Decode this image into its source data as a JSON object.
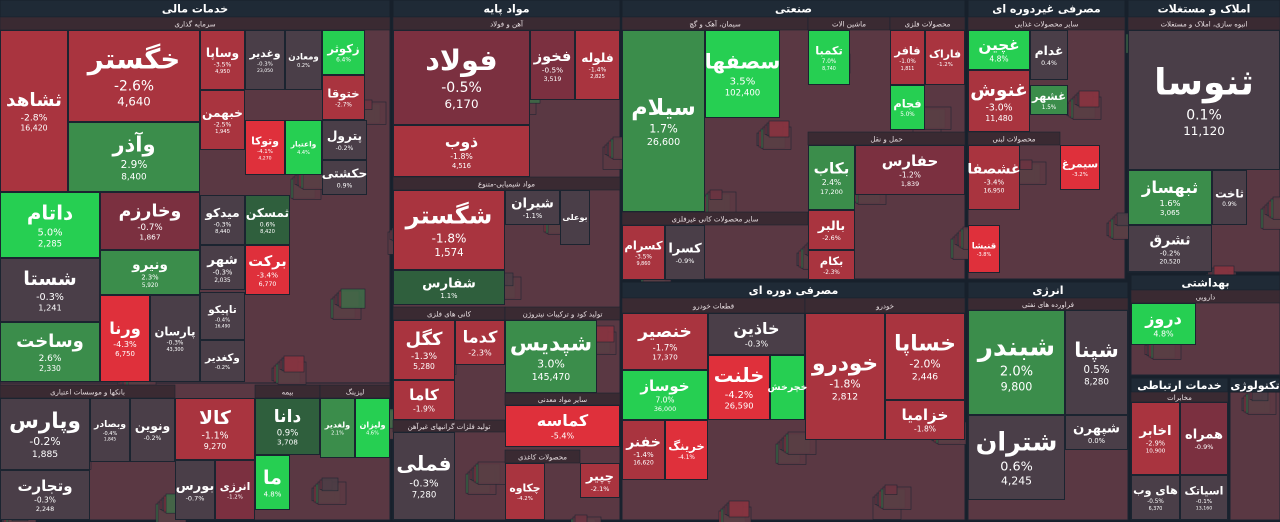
{
  "headers": [
    "خدمات مالی",
    "مواد پایه",
    "صنعتی",
    "مصرفی غیردوره ای",
    "املاک و مستغلات",
    "مصرفی دوره ای",
    "انرژی",
    "بهداشتی",
    "خدمات ارتباطی",
    "تکنولوژی"
  ],
  "subheaders": [
    "سرمایه گذاری",
    "بانکها و موسسات اعتباری",
    "بیمه",
    "لیزینگ",
    "آهن و فولاد",
    "مواد شیمیایی-متنوع",
    "کانی های فلزی",
    "تولید کود و ترکیبات نیتروژن",
    "سایر مواد معدنی",
    "تولید فلزات گرانبهای غیرآهن",
    "محصولات کاغذی",
    "سیمان، آهک و گچ",
    "ماشین الات",
    "محصولات فلزی",
    "حمل و نقل",
    "سایر محصولات کانی غیرفلزی",
    "سایر محصولات غذایی",
    "محصولات لبنی",
    "انبوه سازی، املاک و مستغلات",
    "قطعات خودرو",
    "خودرو",
    "فراورده های نفتی",
    "دارویی",
    "مخابرات"
  ],
  "tiles": [
    {
      "name": "ثشاهد",
      "change": "-2.8%",
      "value": "16,420"
    },
    {
      "name": "خگستر",
      "change": "-2.6%",
      "value": "4,640"
    },
    {
      "name": "وآذر",
      "change": "2.9%",
      "value": "8,400"
    },
    {
      "name": "داتام",
      "change": "5.0%",
      "value": "2,285"
    },
    {
      "name": "شستا",
      "change": "-0.3%",
      "value": "1,241"
    },
    {
      "name": "وساخت",
      "change": "2.6%",
      "value": "2,330"
    },
    {
      "name": "وخارزم",
      "change": "-0.7%",
      "value": "1,867"
    },
    {
      "name": "ونیرو",
      "change": "2.3%",
      "value": "5,920"
    },
    {
      "name": "ورنا",
      "change": "-4.3%",
      "value": "6,750"
    },
    {
      "name": "پارسان",
      "change": "-0.3%",
      "value": "43,300"
    },
    {
      "name": "وساپا",
      "change": "-3.5%",
      "value": "4,950"
    },
    {
      "name": "وغدیر",
      "change": "-0.3%",
      "value": "23,050"
    },
    {
      "name": "ومعادن",
      "change": "0.2%"
    },
    {
      "name": "زکوثر",
      "change": "6.4%"
    },
    {
      "name": "ختوقا",
      "change": "-2.7%"
    },
    {
      "name": "خبهمن",
      "change": "-2.5%",
      "value": "1,945"
    },
    {
      "name": "وتوکا",
      "change": "-4.1%",
      "value": "4,270"
    },
    {
      "name": "واعتبار",
      "change": "4.4%"
    },
    {
      "name": "پترول",
      "change": "-0.2%"
    },
    {
      "name": "حکشتی",
      "change": "0.9%"
    },
    {
      "name": "میدکو",
      "change": "-0.3%",
      "value": "8,440"
    },
    {
      "name": "ثمسکن",
      "change": "0.6%",
      "value": "8,420"
    },
    {
      "name": "شهر",
      "change": "-0.3%",
      "value": "2,035"
    },
    {
      "name": "برکت",
      "change": "-3.4%",
      "value": "6,770"
    },
    {
      "name": "تاپیکو",
      "change": "-0.4%",
      "value": "16,490"
    },
    {
      "name": "وکغدیر",
      "change": "-0.2%"
    },
    {
      "name": "وپارس",
      "change": "-0.2%",
      "value": "1,885"
    },
    {
      "name": "وتجارت",
      "change": "-0.3%",
      "value": "2,248"
    },
    {
      "name": "وبصادر",
      "change": "-0.4%",
      "value": "1,845"
    },
    {
      "name": "ونوین",
      "change": "-0.2%"
    },
    {
      "name": "کالا",
      "change": "-1.1%",
      "value": "9,270"
    },
    {
      "name": "بورس",
      "change": "-0.7%"
    },
    {
      "name": "انرژی",
      "change": "-1.2%"
    },
    {
      "name": "دانا",
      "change": "0.9%",
      "value": "3,708"
    },
    {
      "name": "ما",
      "change": "4.8%"
    },
    {
      "name": "ولغدیر",
      "change": "2.1%"
    },
    {
      "name": "ولیزان",
      "change": "4.6%"
    },
    {
      "name": "فولاد",
      "change": "-0.5%",
      "value": "6,170"
    },
    {
      "name": "ذوب",
      "change": "-1.8%",
      "value": "4,516"
    },
    {
      "name": "فخوز",
      "change": "-0.5%",
      "value": "3,519"
    },
    {
      "name": "فلوله",
      "change": "-1.4%",
      "value": "2,825"
    },
    {
      "name": "شگستر",
      "change": "-1.8%",
      "value": "1,574"
    },
    {
      "name": "شفارس",
      "change": "1.1%"
    },
    {
      "name": "شیران",
      "change": "-1.1%"
    },
    {
      "name": "بوعلی"
    },
    {
      "name": "کگل",
      "change": "-1.3%",
      "value": "5,280"
    },
    {
      "name": "کدما",
      "change": "-2.3%"
    },
    {
      "name": "کاما",
      "change": "-1.9%"
    },
    {
      "name": "فملی",
      "change": "-0.3%",
      "value": "7,280"
    },
    {
      "name": "شپدیس",
      "change": "3.0%",
      "value": "145,470"
    },
    {
      "name": "کماسه",
      "change": "-5.4%"
    },
    {
      "name": "چکاوه",
      "change": "-4.2%"
    },
    {
      "name": "چپیر",
      "change": "-2.1%"
    },
    {
      "name": "سیلام",
      "change": "1.7%",
      "value": "26,600"
    },
    {
      "name": "سصفها",
      "change": "3.5%",
      "value": "102,400"
    },
    {
      "name": "تکمبا",
      "change": "7.0%",
      "value": "8,740"
    },
    {
      "name": "فافر",
      "change": "-1.0%",
      "value": "1,811"
    },
    {
      "name": "فاراک",
      "change": "-1.2%"
    },
    {
      "name": "فجام",
      "change": "5.0%"
    },
    {
      "name": "بکاب",
      "change": "2.4%",
      "value": "17,200"
    },
    {
      "name": "حفارس",
      "change": "-1.2%",
      "value": "1,839"
    },
    {
      "name": "کسرام",
      "change": "-3.5%",
      "value": "9,860"
    },
    {
      "name": "کسرا",
      "change": "-0.9%"
    },
    {
      "name": "بالبر",
      "change": "-2.6%"
    },
    {
      "name": "بکام",
      "change": "-2.3%"
    },
    {
      "name": "غچین",
      "change": "4.8%"
    },
    {
      "name": "غنوش",
      "change": "-3.0%",
      "value": "11,480"
    },
    {
      "name": "غدام",
      "change": "0.4%"
    },
    {
      "name": "غشهر",
      "change": "1.5%"
    },
    {
      "name": "غشصفا",
      "change": "-3.4%",
      "value": "16,950"
    },
    {
      "name": "سیمرغ",
      "change": "-3.2%"
    },
    {
      "name": "قنیشا",
      "change": "-3.8%"
    },
    {
      "name": "ثنوسا",
      "change": "0.1%",
      "value": "11,120"
    },
    {
      "name": "ثبهساز",
      "change": "1.6%",
      "value": "3,065"
    },
    {
      "name": "ثشرق",
      "change": "-0.2%",
      "value": "20,520"
    },
    {
      "name": "ثاخت",
      "change": "0.9%"
    },
    {
      "name": "خودرو",
      "change": "-1.8%",
      "value": "2,812"
    },
    {
      "name": "خساپا",
      "change": "-2.0%",
      "value": "2,446"
    },
    {
      "name": "خزامیا",
      "change": "-1.8%"
    },
    {
      "name": "خنصیر",
      "change": "-1.7%",
      "value": "17,370"
    },
    {
      "name": "خاذین",
      "change": "-0.3%"
    },
    {
      "name": "خلنت",
      "change": "-4.2%",
      "value": "26,590"
    },
    {
      "name": "خوساز",
      "change": "7.0%",
      "value": "36,000"
    },
    {
      "name": "خفنر",
      "change": "-1.4%",
      "value": "16,620"
    },
    {
      "name": "خرینگ",
      "change": "-4.1%"
    },
    {
      "name": "خچرخش"
    },
    {
      "name": "شبندر",
      "change": "2.0%",
      "value": "9,800"
    },
    {
      "name": "شپنا",
      "change": "0.5%",
      "value": "8,280"
    },
    {
      "name": "شتران",
      "change": "0.6%",
      "value": "4,245"
    },
    {
      "name": "شپهرن",
      "change": "0.0%"
    },
    {
      "name": "دروز",
      "change": "4.8%"
    },
    {
      "name": "اخابر",
      "change": "-2.9%",
      "value": "10,900"
    },
    {
      "name": "همراه",
      "change": "-0.9%"
    },
    {
      "name": "های وب",
      "change": "-0.5%",
      "value": "6,370"
    },
    {
      "name": "اسیاتک",
      "change": "-0.1%",
      "value": "13,160"
    }
  ]
}
